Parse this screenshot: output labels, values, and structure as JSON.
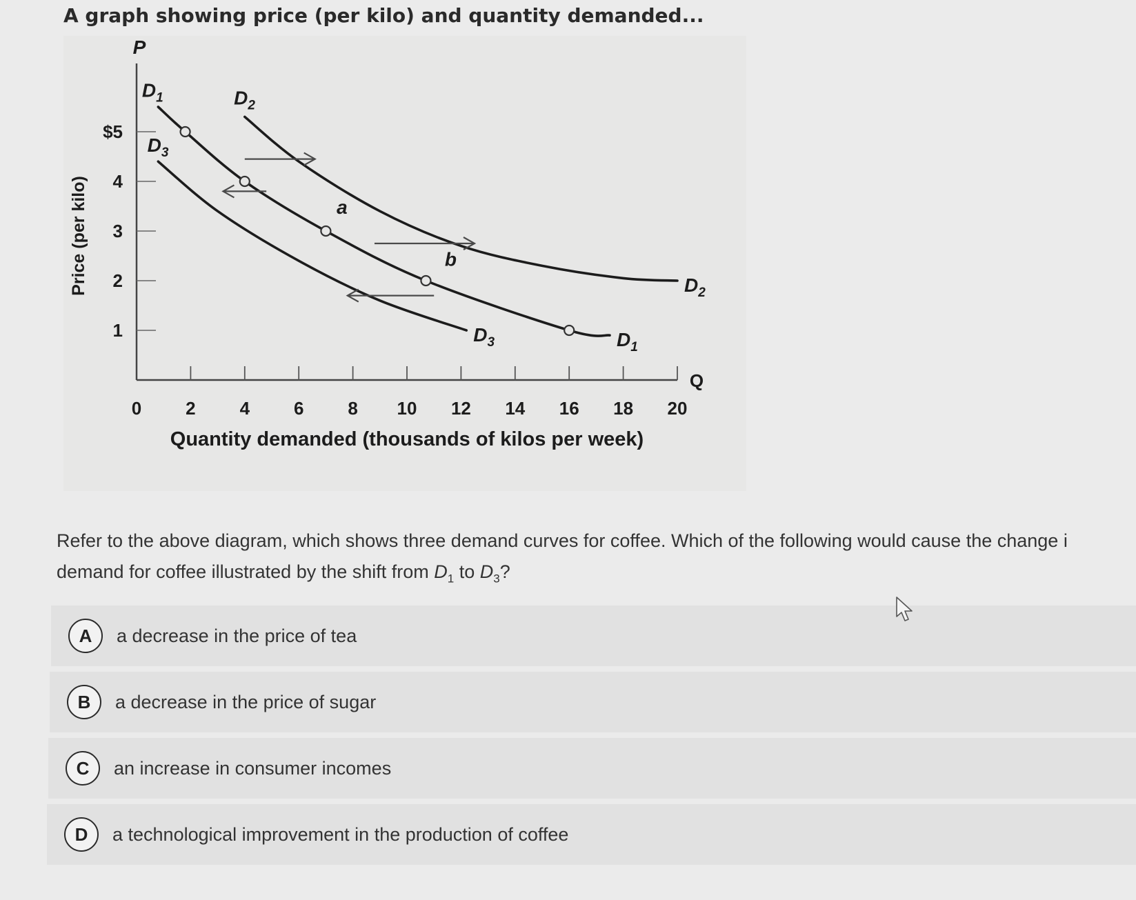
{
  "question": {
    "title": "A graph showing price (per kilo) and quantity demanded...",
    "prompt_line1": "Refer to the above diagram, which shows three demand curves for coffee. Which of the following would cause the change i",
    "prompt_line2_prefix": "demand for coffee illustrated by the shift from ",
    "prompt_line2_mid": " to ",
    "prompt_line2_suffix": "?",
    "from_curve": {
      "symbol": "D",
      "sub": "1"
    },
    "to_curve": {
      "symbol": "D",
      "sub": "3"
    }
  },
  "options": [
    {
      "letter": "A",
      "text": "a decrease in the price of tea"
    },
    {
      "letter": "B",
      "text": "a decrease in the price of sugar"
    },
    {
      "letter": "C",
      "text": "an increase in consumer incomes"
    },
    {
      "letter": "D",
      "text": "a technological improvement in the production of coffee"
    }
  ],
  "chart_data": {
    "type": "line",
    "xlabel": "Quantity demanded (thousands of kilos per week)",
    "ylabel": "Price (per kilo)",
    "x_axis_symbol": "Q",
    "y_axis_symbol": "P",
    "x_ticks": [
      "0",
      "2",
      "4",
      "6",
      "8",
      "10",
      "12",
      "14",
      "16",
      "18",
      "20"
    ],
    "y_ticks": [
      "1",
      "2",
      "3",
      "4",
      "$5"
    ],
    "xlim": [
      0,
      21
    ],
    "ylim": [
      0,
      6
    ],
    "series": [
      {
        "name": "D1",
        "label": "D",
        "sub": "1",
        "x": [
          0.8,
          1.8,
          4,
          7,
          10.7,
          16,
          17.5
        ],
        "y": [
          5.5,
          5,
          4,
          3,
          2,
          1,
          0.9
        ],
        "markers": [
          1.8,
          4,
          7,
          10.7,
          16
        ]
      },
      {
        "name": "D2",
        "label": "D",
        "sub": "2",
        "x": [
          4,
          6,
          9,
          12,
          15,
          18,
          20
        ],
        "y": [
          5.3,
          4.4,
          3.4,
          2.7,
          2.3,
          2.05,
          2.0
        ]
      },
      {
        "name": "D3",
        "label": "D",
        "sub": "3",
        "x": [
          0.8,
          3,
          6,
          9,
          12.2
        ],
        "y": [
          4.4,
          3.4,
          2.4,
          1.6,
          1.0
        ]
      }
    ],
    "point_labels": [
      {
        "text": "a",
        "x": 7.4,
        "y": 3.35
      },
      {
        "text": "b",
        "x": 11.4,
        "y": 2.3
      }
    ],
    "arrows": [
      {
        "from": [
          4,
          4.45
        ],
        "to": [
          6.6,
          4.45
        ]
      },
      {
        "from": [
          4.8,
          3.8
        ],
        "to": [
          3.2,
          3.8
        ]
      },
      {
        "from": [
          8.8,
          2.75
        ],
        "to": [
          12.5,
          2.75
        ]
      },
      {
        "from": [
          11,
          1.7
        ],
        "to": [
          7.8,
          1.7
        ]
      }
    ],
    "inline_labels": [
      {
        "series": "D1",
        "text": "D",
        "sub": "1",
        "x": 0.2,
        "y": 5.7
      },
      {
        "series": "D2",
        "text": "D",
        "sub": "2",
        "x": 3.6,
        "y": 5.55
      },
      {
        "series": "D3",
        "text": "D",
        "sub": "3",
        "x": 0.4,
        "y": 4.6
      }
    ]
  }
}
